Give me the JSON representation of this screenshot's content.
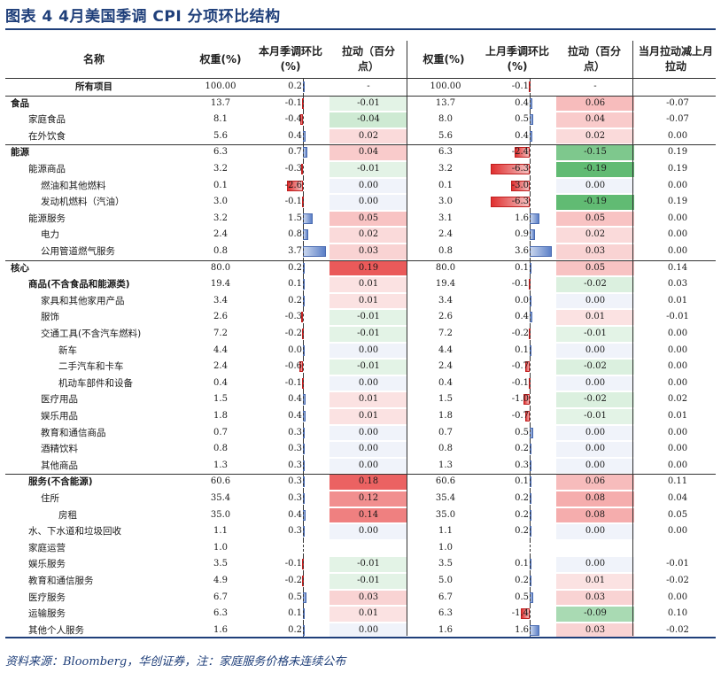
{
  "title": "图表 4   4月美国季调 CPI 分项环比结构",
  "headers": {
    "name": "名称",
    "weight_cur": "权重(%)",
    "mom_cur": "本月季调环比(%)",
    "pull_cur": "拉动（百分点）",
    "weight_prev": "权重(%)",
    "mom_prev": "上月季调环比(%)",
    "pull_prev": "拉动（百分点）",
    "diff": "当月拉动减上月拉动"
  },
  "rows": [
    {
      "name": "所有项目",
      "level": 0,
      "bold": true,
      "w1": "100.00",
      "m1": "0.2",
      "p1": "-",
      "w2": "100.00",
      "m2": "-0.1",
      "p2": "-",
      "d": ""
    },
    {
      "name": "食品",
      "level": 0,
      "bold": true,
      "w1": "13.7",
      "m1": "-0.1",
      "p1": "-0.01",
      "w2": "13.7",
      "m2": "0.4",
      "p2": "0.06",
      "d": "-0.07"
    },
    {
      "name": "家庭食品",
      "level": 1,
      "w1": "8.1",
      "m1": "-0.4",
      "p1": "-0.04",
      "w2": "8.0",
      "m2": "0.5",
      "p2": "0.04",
      "d": "-0.07"
    },
    {
      "name": "在外饮食",
      "level": 1,
      "w1": "5.6",
      "m1": "0.4",
      "p1": "0.02",
      "w2": "5.6",
      "m2": "0.4",
      "p2": "0.02",
      "d": "0.00"
    },
    {
      "name": "能源",
      "level": 0,
      "bold": true,
      "w1": "6.3",
      "m1": "0.7",
      "p1": "0.04",
      "w2": "6.3",
      "m2": "-2.4",
      "p2": "-0.15",
      "d": "0.19"
    },
    {
      "name": "能源商品",
      "level": 1,
      "w1": "3.2",
      "m1": "-0.3",
      "p1": "-0.01",
      "w2": "3.2",
      "m2": "-6.3",
      "p2": "-0.19",
      "d": "0.19"
    },
    {
      "name": "燃油和其他燃料",
      "level": 2,
      "w1": "0.1",
      "m1": "-2.6",
      "p1": "0.00",
      "w2": "0.1",
      "m2": "-3.0",
      "p2": "0.00",
      "d": "0.00"
    },
    {
      "name": "发动机燃料（汽油）",
      "level": 2,
      "w1": "3.0",
      "m1": "-0.1",
      "p1": "0.00",
      "w2": "3.0",
      "m2": "-6.3",
      "p2": "-0.19",
      "d": "0.19"
    },
    {
      "name": "能源服务",
      "level": 1,
      "w1": "3.2",
      "m1": "1.5",
      "p1": "0.05",
      "w2": "3.1",
      "m2": "1.6",
      "p2": "0.05",
      "d": "0.00"
    },
    {
      "name": "电力",
      "level": 2,
      "w1": "2.4",
      "m1": "0.8",
      "p1": "0.02",
      "w2": "2.4",
      "m2": "0.9",
      "p2": "0.02",
      "d": "0.00"
    },
    {
      "name": "公用管道燃气服务",
      "level": 2,
      "w1": "0.8",
      "m1": "3.7",
      "p1": "0.03",
      "w2": "0.8",
      "m2": "3.6",
      "p2": "0.03",
      "d": "0.00"
    },
    {
      "name": "核心",
      "level": 0,
      "bold": true,
      "w1": "80.0",
      "m1": "0.2",
      "p1": "0.19",
      "w2": "80.0",
      "m2": "0.1",
      "p2": "0.05",
      "d": "0.14"
    },
    {
      "name": "商品(不含食品和能源类)",
      "level": 1,
      "bold": true,
      "w1": "19.4",
      "m1": "0.1",
      "p1": "0.01",
      "w2": "19.4",
      "m2": "-0.1",
      "p2": "-0.02",
      "d": "0.03"
    },
    {
      "name": "家具和其他家用产品",
      "level": 2,
      "w1": "3.4",
      "m1": "0.2",
      "p1": "0.01",
      "w2": "3.4",
      "m2": "0.0",
      "p2": "0.00",
      "d": "0.01"
    },
    {
      "name": "服饰",
      "level": 2,
      "w1": "2.6",
      "m1": "-0.3",
      "p1": "-0.01",
      "w2": "2.6",
      "m2": "0.4",
      "p2": "0.01",
      "d": "-0.01"
    },
    {
      "name": "交通工具(不含汽车燃料)",
      "level": 2,
      "w1": "7.2",
      "m1": "-0.2",
      "p1": "-0.01",
      "w2": "7.2",
      "m2": "-0.2",
      "p2": "-0.01",
      "d": "0.00"
    },
    {
      "name": "新车",
      "level": 3,
      "w1": "4.4",
      "m1": "0.0",
      "p1": "0.00",
      "w2": "4.4",
      "m2": "0.1",
      "p2": "0.00",
      "d": "0.00"
    },
    {
      "name": "二手汽车和卡车",
      "level": 3,
      "w1": "2.4",
      "m1": "-0.6",
      "p1": "-0.01",
      "w2": "2.4",
      "m2": "-0.7",
      "p2": "-0.02",
      "d": "0.00"
    },
    {
      "name": "机动车部件和设备",
      "level": 3,
      "w1": "0.4",
      "m1": "-0.1",
      "p1": "0.00",
      "w2": "0.4",
      "m2": "-0.1",
      "p2": "0.00",
      "d": "0.00"
    },
    {
      "name": "医疗用品",
      "level": 2,
      "w1": "1.5",
      "m1": "0.4",
      "p1": "0.01",
      "w2": "1.5",
      "m2": "-1.0",
      "p2": "-0.02",
      "d": "0.02"
    },
    {
      "name": "娱乐用品",
      "level": 2,
      "w1": "1.8",
      "m1": "0.4",
      "p1": "0.01",
      "w2": "1.8",
      "m2": "-0.7",
      "p2": "-0.01",
      "d": "0.01"
    },
    {
      "name": "教育和通信商品",
      "level": 2,
      "w1": "0.7",
      "m1": "0.3",
      "p1": "0.00",
      "w2": "0.7",
      "m2": "0.5",
      "p2": "0.00",
      "d": "0.00"
    },
    {
      "name": "酒精饮料",
      "level": 2,
      "w1": "0.8",
      "m1": "0.3",
      "p1": "0.00",
      "w2": "0.8",
      "m2": "0.2",
      "p2": "0.00",
      "d": "0.00"
    },
    {
      "name": "其他商品",
      "level": 2,
      "w1": "1.3",
      "m1": "0.3",
      "p1": "0.00",
      "w2": "1.3",
      "m2": "0.3",
      "p2": "0.00",
      "d": "0.00"
    },
    {
      "name": "服务(不含能源)",
      "level": 1,
      "bold": true,
      "w1": "60.6",
      "m1": "0.3",
      "p1": "0.18",
      "w2": "60.6",
      "m2": "0.1",
      "p2": "0.06",
      "d": "0.11"
    },
    {
      "name": "住所",
      "level": 2,
      "w1": "35.4",
      "m1": "0.3",
      "p1": "0.12",
      "w2": "35.4",
      "m2": "0.2",
      "p2": "0.08",
      "d": "0.04"
    },
    {
      "name": "房租",
      "level": 3,
      "w1": "35.0",
      "m1": "0.4",
      "p1": "0.14",
      "w2": "35.0",
      "m2": "0.2",
      "p2": "0.08",
      "d": "0.05"
    },
    {
      "name": "水、下水道和垃圾回收",
      "level": 1,
      "w1": "1.1",
      "m1": "0.3",
      "p1": "0.00",
      "w2": "1.1",
      "m2": "0.2",
      "p2": "0.00",
      "d": "0.00"
    },
    {
      "name": "家庭运营",
      "level": 1,
      "w1": "1.0",
      "m1": "",
      "p1": "",
      "w2": "1.0",
      "m2": "",
      "p2": "",
      "d": ""
    },
    {
      "name": "娱乐服务",
      "level": 1,
      "w1": "3.5",
      "m1": "-0.1",
      "p1": "-0.01",
      "w2": "3.5",
      "m2": "0.1",
      "p2": "0.00",
      "d": "-0.01"
    },
    {
      "name": "教育和通信服务",
      "level": 1,
      "w1": "4.9",
      "m1": "-0.2",
      "p1": "-0.01",
      "w2": "5.0",
      "m2": "0.2",
      "p2": "0.01",
      "d": "-0.02"
    },
    {
      "name": "医疗服务",
      "level": 1,
      "w1": "6.7",
      "m1": "0.5",
      "p1": "0.03",
      "w2": "6.7",
      "m2": "0.5",
      "p2": "0.03",
      "d": "0.00"
    },
    {
      "name": "运输服务",
      "level": 1,
      "w1": "6.3",
      "m1": "0.1",
      "p1": "0.01",
      "w2": "6.3",
      "m2": "-1.4",
      "p2": "-0.09",
      "d": "0.10"
    },
    {
      "name": "其他个人服务",
      "level": 1,
      "w1": "1.6",
      "m1": "0.2",
      "p1": "0.00",
      "w2": "1.6",
      "m2": "1.6",
      "p2": "0.03",
      "d": "-0.02"
    }
  ],
  "footer": "资料来源：Bloomberg，华创证券，注：家庭服务价格未连续公布",
  "colors": {
    "title": "#1f3f7a",
    "pos_pull": "#e85a5a",
    "neg_pull": "#5bb76b",
    "bar_pos": "#5b7fc7",
    "bar_neg": "#e03030"
  }
}
